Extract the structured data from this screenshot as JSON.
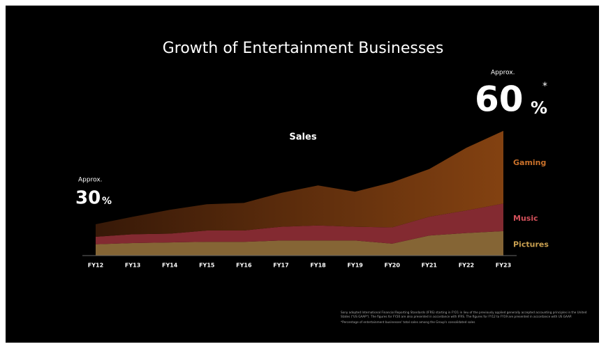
{
  "chart_data": {
    "type": "stacked-area",
    "title": "Growth of Entertainment Businesses",
    "subtitle": "Sales",
    "categories": [
      "FY12",
      "FY13",
      "FY14",
      "FY15",
      "FY16",
      "FY17",
      "FY18",
      "FY19",
      "FY20",
      "FY21",
      "FY22",
      "FY23"
    ],
    "series": [
      {
        "name": "Pictures",
        "color": "#8c6a38",
        "label_color": "#c9a050",
        "values": [
          9,
          10,
          10.5,
          11,
          11,
          12,
          12,
          12,
          9.5,
          16,
          18,
          19.5
        ]
      },
      {
        "name": "Music",
        "color": "#8a2c34",
        "label_color": "#d2505a",
        "values": [
          6,
          7,
          7,
          9,
          9,
          11,
          12,
          11,
          13,
          15,
          18,
          22
        ]
      },
      {
        "name": "Gaming",
        "color": "#6e3510",
        "label_color": "#c8702a",
        "values": [
          10,
          14,
          19,
          21,
          22,
          27,
          32,
          28,
          36,
          38,
          50,
          58
        ]
      }
    ],
    "ylim": [
      0,
      100
    ],
    "annotations": {
      "left_prefix": "Approx.",
      "left_value": "30",
      "left_unit": "%",
      "right_prefix": "Approx.",
      "right_value": "60",
      "right_unit": "%",
      "right_mark": "*"
    },
    "footnotes": [
      "Sony adopted International Financial Reporting Standards (IFRS) starting in FY21 in lieu of the previously applied generally accepted accounting principles in the United States (\"US GAAP\"). The figures for FY20 are also presented in accordance with IFRS. The figures for FY12 to FY19 are presented in accordance with US GAAP.",
      "*Percentage of entertainment businesses' total sales among the Group's consolidated sales"
    ]
  }
}
